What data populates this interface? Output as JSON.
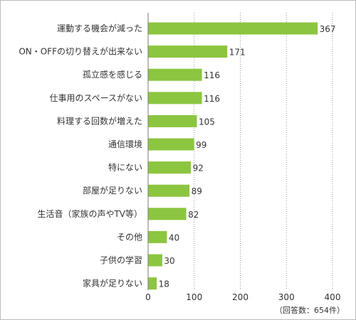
{
  "chart_data": {
    "type": "bar",
    "orientation": "horizontal",
    "categories": [
      "運動する機会が減った",
      "ON・OFFの切り替えが出来ない",
      "孤立感を感じる",
      "仕事用のスペースがない",
      "料理する回数が増えた",
      "通信環境",
      "特にない",
      "部屋が足りない",
      "生活音（家族の声やTV等）",
      "その他",
      "子供の学習",
      "家具が足りない"
    ],
    "values": [
      367,
      171,
      116,
      116,
      105,
      99,
      92,
      89,
      82,
      40,
      30,
      18
    ],
    "xlim": [
      0,
      400
    ],
    "xticks": [
      "0",
      "100",
      "200",
      "300",
      "400"
    ],
    "grid": "vertical dotted",
    "note": "（回答数：654件）",
    "bar_color": "#8cc540"
  }
}
